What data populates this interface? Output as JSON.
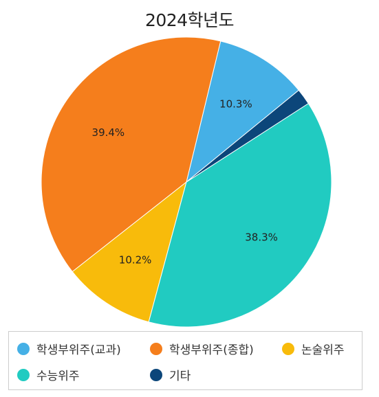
{
  "chart_data": {
    "type": "pie",
    "title": "2024학년도",
    "slices": [
      {
        "name": "학생부위주(교과)",
        "value": 10.3,
        "label": "10.3%",
        "color": "#45b0e6"
      },
      {
        "name": "학생부위주(종합)",
        "value": 39.4,
        "label": "39.4%",
        "color": "#f57e1c"
      },
      {
        "name": "논술위주",
        "value": 10.2,
        "label": "10.2%",
        "color": "#f8bb0b"
      },
      {
        "name": "수능위주",
        "value": 38.3,
        "label": "38.3%",
        "color": "#21cbc1"
      },
      {
        "name": "기타",
        "value": 1.8,
        "label": "",
        "color": "#0c467a"
      }
    ],
    "legend_position": "bottom"
  }
}
